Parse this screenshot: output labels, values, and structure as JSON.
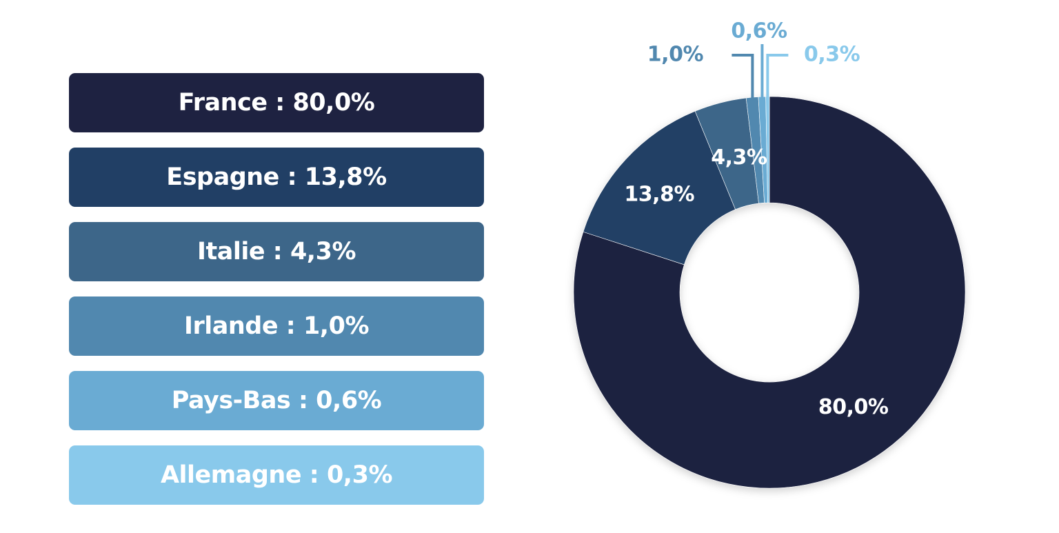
{
  "chart_data": {
    "type": "pie",
    "donut": true,
    "categories": [
      "France",
      "Espagne",
      "Italie",
      "Irlande",
      "Pays-Bas",
      "Allemagne"
    ],
    "values": [
      80.0,
      13.8,
      4.3,
      1.0,
      0.6,
      0.3
    ],
    "colors": [
      "#1e2241",
      "#213f65",
      "#3d6689",
      "#5188af",
      "#6aabd3",
      "#89c9eb"
    ],
    "legend_labels": [
      "France : 80,0%",
      "Espagne : 13,8%",
      "Italie : 4,3%",
      "Irlande : 1,0%",
      "Pays-Bas : 0,6%",
      "Allemagne : 0,3%"
    ],
    "slice_labels": [
      "80,0%",
      "13,8%",
      "4,3%",
      "1,0%",
      "0,6%",
      "0,3%"
    ],
    "legend_position": "left"
  }
}
